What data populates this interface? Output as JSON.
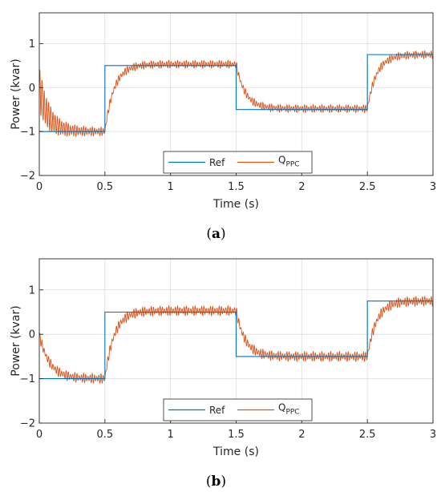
{
  "colors": {
    "ref": "#0072BD",
    "q_ppc": "#D95319",
    "axis": "#262626",
    "grid": "#dcdcdc"
  },
  "chart_data": [
    {
      "type": "line",
      "caption": "(a)",
      "xlabel": "Time (s)",
      "ylabel": "Power (kvar)",
      "xlim": [
        0,
        3
      ],
      "ylim": [
        -2,
        1.7
      ],
      "xticks": [
        0,
        0.5,
        1,
        1.5,
        2,
        2.5,
        3
      ],
      "xtick_labels": [
        "0",
        "0.5",
        "1",
        "1.5",
        "2",
        "2.5",
        "3"
      ],
      "yticks": [
        -2,
        -1,
        0,
        1
      ],
      "ytick_labels": [
        "−2",
        "−1",
        "0",
        "1"
      ],
      "grid": true,
      "legend": {
        "placement": "bottom-center",
        "orientation": "horizontal",
        "entries": [
          "Ref",
          "Q_PPC"
        ]
      },
      "series": [
        {
          "name": "Ref",
          "x": [
            0,
            0.5,
            0.5,
            1.5,
            1.5,
            2.5,
            2.5,
            3
          ],
          "y": [
            -1,
            -1,
            0.5,
            0.5,
            -0.5,
            -0.5,
            0.75,
            0.75
          ]
        },
        {
          "name": "Q_PPC",
          "initial_value": 0.0,
          "initial_oscillation": {
            "amplitude": 0.42,
            "decay_s": 0.12,
            "frequency_hz": 60
          },
          "step_response": [
            {
              "t_start": 0,
              "t_end": 0.5,
              "target": -1.0,
              "time_constant_s": 0.07
            },
            {
              "t_start": 0.5,
              "t_end": 1.5,
              "target": 0.53,
              "time_constant_s": 0.07
            },
            {
              "t_start": 1.5,
              "t_end": 2.5,
              "target": -0.48,
              "time_constant_s": 0.07
            },
            {
              "t_start": 2.5,
              "t_end": 3.0,
              "target": 0.75,
              "time_constant_s": 0.07
            }
          ],
          "ripple_amplitude": 0.09,
          "ripple_frequency_hz": 60
        }
      ]
    },
    {
      "type": "line",
      "caption": "(b)",
      "xlabel": "Time (s)",
      "ylabel": "Power (kvar)",
      "xlim": [
        0,
        3
      ],
      "ylim": [
        -2,
        1.7
      ],
      "xticks": [
        0,
        0.5,
        1,
        1.5,
        2,
        2.5,
        3
      ],
      "xtick_labels": [
        "0",
        "0.5",
        "1",
        "1.5",
        "2",
        "2.5",
        "3"
      ],
      "yticks": [
        -2,
        -1,
        0,
        1
      ],
      "ytick_labels": [
        "−2",
        "−1",
        "0",
        "1"
      ],
      "grid": true,
      "legend": {
        "placement": "bottom-center",
        "orientation": "horizontal",
        "entries": [
          "Ref",
          "Q_PPC"
        ]
      },
      "series": [
        {
          "name": "Ref",
          "x": [
            0,
            0.5,
            0.5,
            1.5,
            1.5,
            2.5,
            2.5,
            3
          ],
          "y": [
            -1,
            -1,
            0.5,
            0.5,
            -0.5,
            -0.5,
            0.75,
            0.75
          ]
        },
        {
          "name": "Q_PPC",
          "initial_value": 0.0,
          "initial_oscillation": {
            "amplitude": 0.0,
            "decay_s": 0.1,
            "frequency_hz": 60
          },
          "step_response": [
            {
              "t_start": 0,
              "t_end": 0.5,
              "target": -1.0,
              "time_constant_s": 0.08
            },
            {
              "t_start": 0.5,
              "t_end": 1.5,
              "target": 0.53,
              "time_constant_s": 0.07
            },
            {
              "t_start": 1.5,
              "t_end": 2.5,
              "target": -0.5,
              "time_constant_s": 0.07
            },
            {
              "t_start": 2.5,
              "t_end": 3.0,
              "target": 0.75,
              "time_constant_s": 0.07
            }
          ],
          "ripple_amplitude": 0.11,
          "ripple_frequency_hz": 60
        }
      ]
    }
  ],
  "legend_labels": {
    "ref": "Ref",
    "q_main": "Q",
    "q_sub": "PPC"
  },
  "captions": {
    "a_letter": "a",
    "b_letter": "b"
  }
}
